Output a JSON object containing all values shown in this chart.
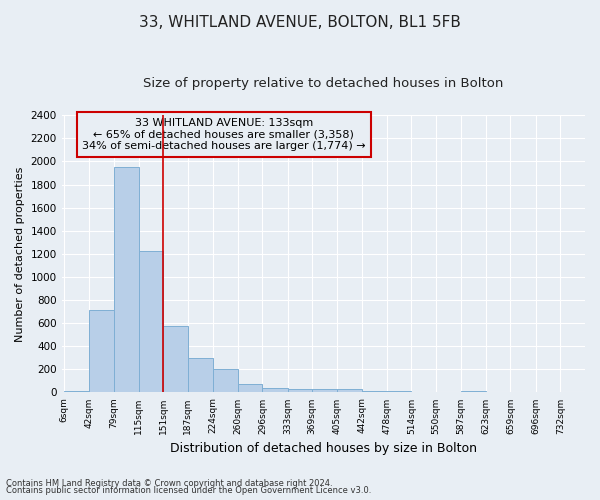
{
  "title1": "33, WHITLAND AVENUE, BOLTON, BL1 5FB",
  "title2": "Size of property relative to detached houses in Bolton",
  "xlabel": "Distribution of detached houses by size in Bolton",
  "ylabel": "Number of detached properties",
  "bin_labels": [
    "6sqm",
    "42sqm",
    "79sqm",
    "115sqm",
    "151sqm",
    "187sqm",
    "224sqm",
    "260sqm",
    "296sqm",
    "333sqm",
    "369sqm",
    "405sqm",
    "442sqm",
    "478sqm",
    "514sqm",
    "550sqm",
    "587sqm",
    "623sqm",
    "659sqm",
    "696sqm",
    "732sqm"
  ],
  "bar_heights": [
    15,
    710,
    1950,
    1225,
    575,
    300,
    200,
    75,
    40,
    30,
    30,
    30,
    15,
    10,
    5,
    0,
    10,
    0,
    0,
    0,
    5
  ],
  "bar_color": "#b8cfe8",
  "bar_edge_color": "#7fafd4",
  "vline_x_bin": 3,
  "bin_edges": [
    6,
    42,
    79,
    115,
    151,
    187,
    224,
    260,
    296,
    333,
    369,
    405,
    442,
    478,
    514,
    550,
    587,
    623,
    659,
    696,
    732,
    768
  ],
  "annotation_title": "33 WHITLAND AVENUE: 133sqm",
  "annotation_line1": "← 65% of detached houses are smaller (3,358)",
  "annotation_line2": "34% of semi-detached houses are larger (1,774) →",
  "annotation_box_color": "#cc0000",
  "ylim": [
    0,
    2400
  ],
  "yticks": [
    0,
    200,
    400,
    600,
    800,
    1000,
    1200,
    1400,
    1600,
    1800,
    2000,
    2200,
    2400
  ],
  "footnote1": "Contains HM Land Registry data © Crown copyright and database right 2024.",
  "footnote2": "Contains public sector information licensed under the Open Government Licence v3.0.",
  "bg_color": "#e8eef4",
  "plot_bg_color": "#e8eef4",
  "grid_color": "#ffffff",
  "title1_fontsize": 11,
  "title2_fontsize": 9.5,
  "ylabel_fontsize": 8,
  "xlabel_fontsize": 9,
  "annot_fontsize": 8,
  "footnote_fontsize": 6
}
